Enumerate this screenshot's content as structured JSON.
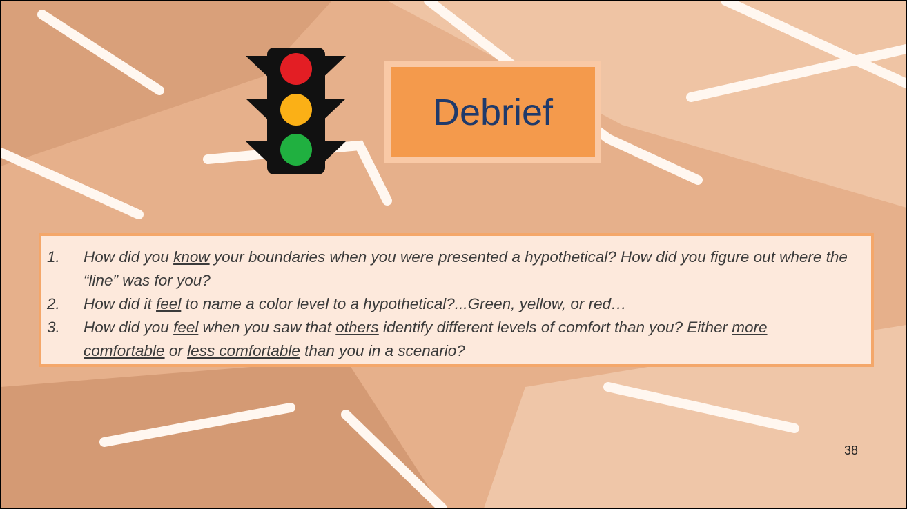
{
  "title": "Debrief",
  "items": [
    {
      "number": "1.",
      "runs": [
        {
          "text": "How did you "
        },
        {
          "text": "know",
          "underline": true
        },
        {
          "text": " your boundaries when you were presented a hypothetical? How did you figure out where the “line” was for you?"
        }
      ]
    },
    {
      "number": "2.",
      "runs": [
        {
          "text": "How did it "
        },
        {
          "text": "feel",
          "underline": true
        },
        {
          "text": " to name a color level to a hypothetical?...Green, yellow, or red…"
        }
      ]
    },
    {
      "number": "3.",
      "runs": [
        {
          "text": "How did you "
        },
        {
          "text": "feel",
          "underline": true
        },
        {
          "text": " when you saw that "
        },
        {
          "text": "others",
          "underline": true
        },
        {
          "text": " identify different levels of comfort than you? Either "
        },
        {
          "text": "more comfortable",
          "underline": true
        },
        {
          "text": " or "
        },
        {
          "text": "less comfortable",
          "underline": true
        },
        {
          "text": " than you in a scenario?"
        }
      ]
    }
  ],
  "page_number": "38"
}
